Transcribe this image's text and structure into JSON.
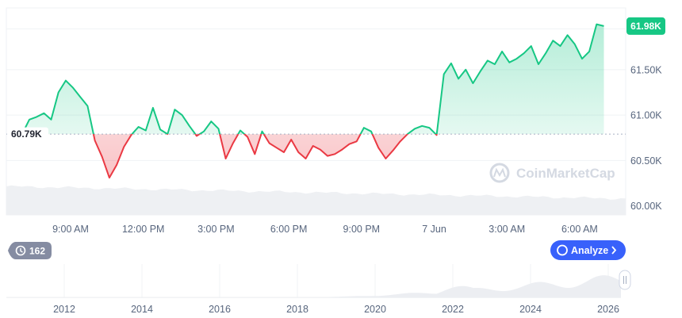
{
  "chart_data": {
    "type": "area",
    "baseline_value": 60790,
    "ylim": [
      59900,
      62180
    ],
    "x_ticks": [
      {
        "label": "9:00 AM",
        "t": 9
      },
      {
        "label": "12:00 PM",
        "t": 12
      },
      {
        "label": "3:00 PM",
        "t": 15
      },
      {
        "label": "6:00 PM",
        "t": 18
      },
      {
        "label": "9:00 PM",
        "t": 21
      },
      {
        "label": "7 Jun",
        "t": 24
      },
      {
        "label": "3:00 AM",
        "t": 27
      },
      {
        "label": "6:00 AM",
        "t": 30
      }
    ],
    "y_ticks": [
      {
        "label": "60.00K",
        "v": 60000
      },
      {
        "label": "60.50K",
        "v": 60500
      },
      {
        "label": "61.00K",
        "v": 61000
      },
      {
        "label": "61.50K",
        "v": 61500
      }
    ],
    "series": [
      {
        "x": [
          7.0,
          7.3,
          7.6,
          7.9,
          8.2,
          8.5,
          8.8,
          9.1,
          9.4,
          9.7,
          10.0,
          10.3,
          10.6,
          10.9,
          11.2,
          11.5,
          11.8,
          12.1,
          12.4,
          12.7,
          13.0,
          13.3,
          13.6,
          13.9,
          14.2,
          14.5,
          14.8,
          15.1,
          15.4,
          15.7,
          16.0,
          16.3,
          16.6,
          16.9,
          17.2,
          17.5,
          17.8,
          18.1,
          18.4,
          18.7,
          19.0,
          19.3,
          19.6,
          19.9,
          20.2,
          20.5,
          20.8,
          21.1,
          21.4,
          21.7,
          22.0,
          22.3,
          22.6,
          22.9,
          23.2,
          23.5,
          23.8,
          24.1,
          24.4,
          24.7,
          25.0,
          25.3,
          25.6,
          25.9,
          26.2,
          26.5,
          26.8,
          27.1,
          27.4,
          27.7,
          28.0,
          28.3,
          28.6,
          28.9,
          29.2,
          29.5,
          29.8,
          30.1,
          30.4,
          30.7,
          31.0
        ],
        "y": [
          60790,
          60950,
          60980,
          61020,
          60950,
          61250,
          61380,
          61300,
          61200,
          61100,
          60720,
          60540,
          60310,
          60450,
          60650,
          60780,
          60870,
          60830,
          61080,
          60840,
          60790,
          61060,
          61000,
          60880,
          60770,
          60820,
          60930,
          60850,
          60520,
          60690,
          60830,
          60760,
          60570,
          60820,
          60690,
          60640,
          60590,
          60730,
          60590,
          60520,
          60660,
          60620,
          60550,
          60570,
          60620,
          60680,
          60710,
          60860,
          60820,
          60640,
          60520,
          60610,
          60710,
          60790,
          60850,
          60880,
          60860,
          60780,
          61450,
          61570,
          61400,
          61500,
          61350,
          61480,
          61600,
          61560,
          61700,
          61580,
          61620,
          61680,
          61760,
          61560,
          61680,
          61820,
          61760,
          61880,
          61780,
          61620,
          61700,
          62000,
          61980
        ]
      }
    ],
    "last_value_label": "61.98K",
    "baseline_label": "60.79K",
    "up_color": "#16c784",
    "down_color": "#ea3943",
    "watermark": "CoinMarketCap",
    "overview": {
      "years": [
        "2012",
        "2014",
        "2016",
        "2018",
        "2020",
        "2022",
        "2024",
        "2026"
      ],
      "history_count": "162",
      "analyze_label": "Analyze",
      "history_icon": "history-icon",
      "analyze_icon": "cmc-logo-icon"
    }
  }
}
